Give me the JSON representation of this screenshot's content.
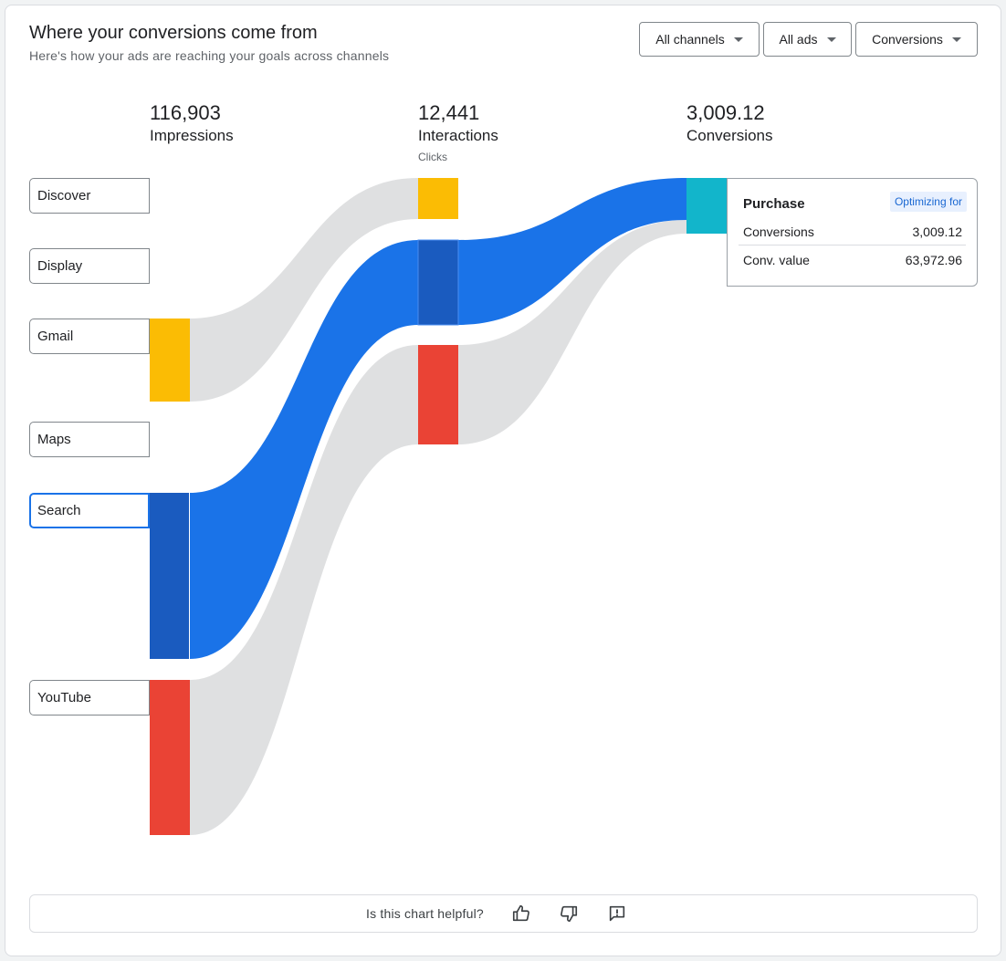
{
  "header": {
    "title": "Where your conversions come from",
    "subtitle": "Here's how your ads are reaching your goals across channels"
  },
  "filters": [
    {
      "label": "All channels"
    },
    {
      "label": "All ads"
    },
    {
      "label": "Conversions"
    }
  ],
  "stages": [
    {
      "value": "116,903",
      "label": "Impressions",
      "sub": ""
    },
    {
      "value": "12,441",
      "label": "Interactions",
      "sub": "Clicks"
    },
    {
      "value": "3,009.12",
      "label": "Conversions",
      "sub": ""
    }
  ],
  "channels": [
    {
      "label": "Discover",
      "selected": false
    },
    {
      "label": "Display",
      "selected": false
    },
    {
      "label": "Gmail",
      "selected": false
    },
    {
      "label": "Maps",
      "selected": false
    },
    {
      "label": "Search",
      "selected": true
    },
    {
      "label": "YouTube",
      "selected": false
    }
  ],
  "tooltip": {
    "title": "Purchase",
    "badge": "Optimizing for",
    "rows": [
      {
        "label": "Conversions",
        "value": "3,009.12"
      },
      {
        "label": "Conv. value",
        "value": "63,972.96"
      }
    ]
  },
  "feedback": {
    "question": "Is this chart helpful?",
    "icons": [
      "thumbs-up-icon",
      "thumbs-down-icon",
      "feedback-icon"
    ]
  },
  "colors": {
    "gmail": "#fbbc04",
    "search": "#1a73e8",
    "search_dark": "#1a5bbf",
    "youtube": "#ea4335",
    "conversion": "#12b5cb",
    "flow_gray": "#dfe0e1",
    "accent": "#1a73e8"
  }
}
